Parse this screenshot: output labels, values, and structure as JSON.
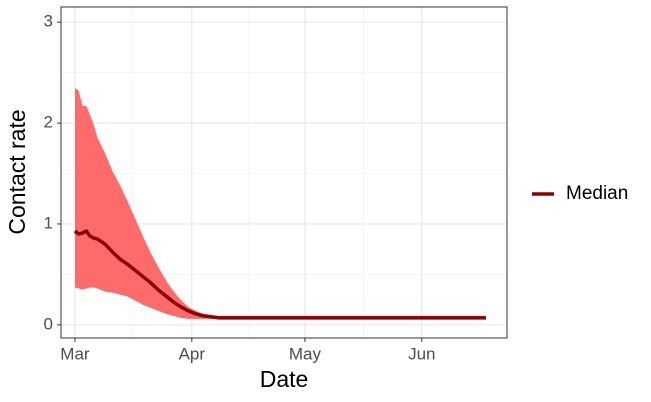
{
  "chart_data": {
    "type": "line",
    "x_label": "Date",
    "y_label": "Contact rate",
    "x": [
      0,
      1,
      2,
      3,
      4,
      5,
      6,
      8,
      10,
      12,
      14,
      16,
      18,
      20,
      22,
      24,
      26,
      28,
      30,
      32,
      34,
      36,
      38,
      40,
      50,
      60,
      70,
      80,
      90,
      100,
      109
    ],
    "series": [
      {
        "name": "Median",
        "color": "#8b0000",
        "values": [
          0.93,
          0.9,
          0.91,
          0.93,
          0.88,
          0.86,
          0.85,
          0.8,
          0.72,
          0.65,
          0.6,
          0.54,
          0.48,
          0.42,
          0.35,
          0.29,
          0.23,
          0.18,
          0.14,
          0.11,
          0.09,
          0.08,
          0.07,
          0.07,
          0.07,
          0.07,
          0.07,
          0.07,
          0.07,
          0.07,
          0.07
        ]
      }
    ],
    "band": {
      "color": "#ff6b6b",
      "upper": [
        2.35,
        2.32,
        2.17,
        2.17,
        2.08,
        1.98,
        1.85,
        1.7,
        1.52,
        1.38,
        1.22,
        1.05,
        0.88,
        0.72,
        0.58,
        0.45,
        0.34,
        0.25,
        0.18,
        0.14,
        0.11,
        0.1,
        0.09,
        0.09,
        0.09,
        0.09,
        0.09,
        0.09,
        0.09,
        0.09,
        0.09
      ],
      "lower": [
        0.37,
        0.36,
        0.35,
        0.36,
        0.37,
        0.37,
        0.36,
        0.33,
        0.32,
        0.3,
        0.28,
        0.24,
        0.2,
        0.17,
        0.14,
        0.11,
        0.09,
        0.07,
        0.06,
        0.06,
        0.06,
        0.06,
        0.06,
        0.06,
        0.06,
        0.06,
        0.06,
        0.06,
        0.06,
        0.06,
        0.06
      ]
    },
    "xlim": [
      -3.7,
      114.6
    ],
    "xticks": [
      {
        "value": 0,
        "label": "Mar"
      },
      {
        "value": 31,
        "label": "Apr"
      },
      {
        "value": 61,
        "label": "May"
      },
      {
        "value": 92,
        "label": "Jun"
      }
    ],
    "ylim": [
      -0.13,
      3.15
    ],
    "yticks": [
      0,
      1,
      2,
      3
    ],
    "grid": true
  }
}
